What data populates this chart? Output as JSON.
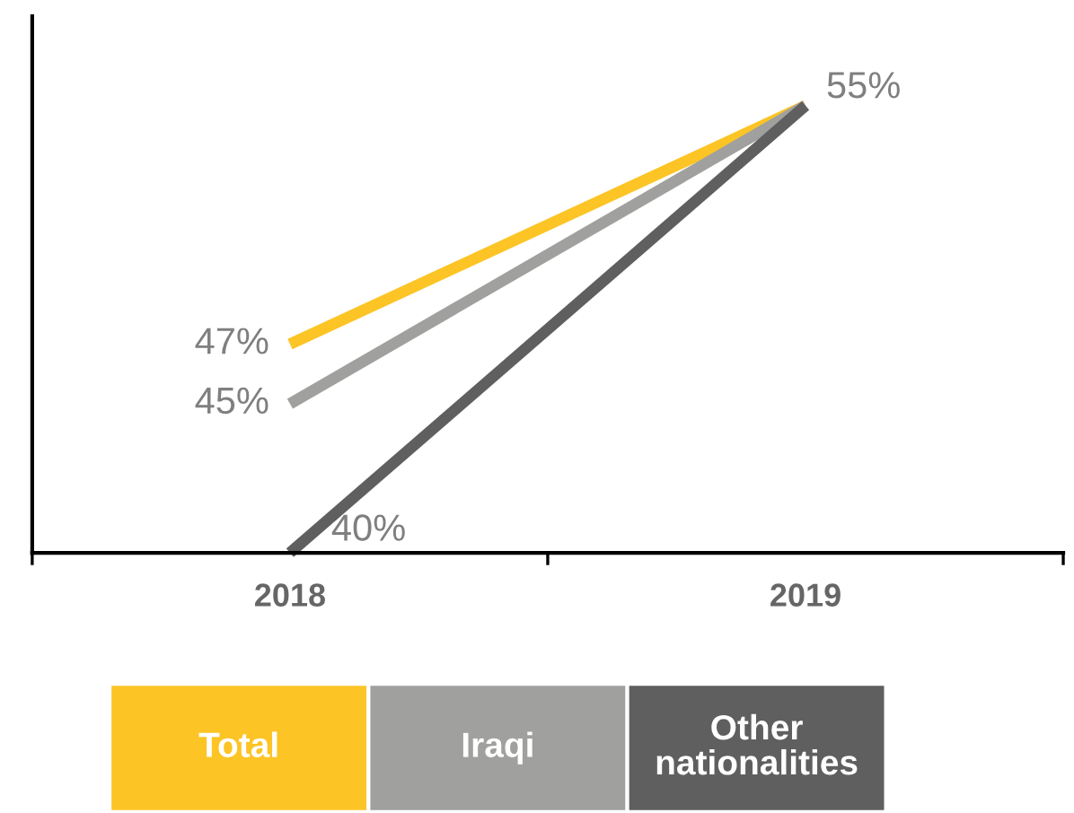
{
  "chart_data": {
    "type": "line",
    "categories": [
      "2018",
      "2019"
    ],
    "series": [
      {
        "name": "Total",
        "color": "#fcc425",
        "values": [
          47,
          55
        ],
        "value_labels": [
          "47%",
          "55%"
        ]
      },
      {
        "name": "Iraqi",
        "color": "#a0a09e",
        "values": [
          45,
          55
        ],
        "value_labels": [
          "45%",
          null
        ]
      },
      {
        "name": "Other nationalities",
        "color": "#5f5f5f",
        "values": [
          40,
          55
        ],
        "value_labels": [
          "40%",
          null
        ]
      }
    ],
    "ylim": [
      40,
      58
    ],
    "tick_labels": "x",
    "grid": false,
    "legend": "bottom",
    "marker": "none",
    "line_style": "solid"
  }
}
